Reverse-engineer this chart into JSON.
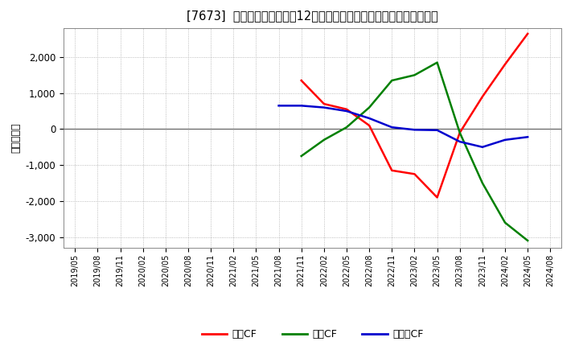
{
  "title": "[7673]  キャッシュフローの12か月移動合計の対前年同期増減額の推移",
  "ylabel": "（百万円）",
  "background_color": "#ffffff",
  "plot_bg_color": "#ffffff",
  "grid_color": "#aaaaaa",
  "ylim": [
    -3300,
    2800
  ],
  "yticks": [
    -3000,
    -2000,
    -1000,
    0,
    1000,
    2000
  ],
  "x_labels": [
    "2019/05",
    "2019/08",
    "2019/11",
    "2020/02",
    "2020/05",
    "2020/08",
    "2020/11",
    "2021/02",
    "2021/05",
    "2021/08",
    "2021/11",
    "2022/02",
    "2022/05",
    "2022/08",
    "2022/11",
    "2023/02",
    "2023/05",
    "2023/08",
    "2023/11",
    "2024/02",
    "2024/05",
    "2024/08"
  ],
  "operating_cf": {
    "x": [
      "2021/11",
      "2022/02",
      "2022/05",
      "2022/08",
      "2022/11",
      "2023/02",
      "2023/05",
      "2023/08",
      "2023/11",
      "2024/02",
      "2024/05"
    ],
    "y": [
      1350,
      700,
      550,
      100,
      -1150,
      -1250,
      -1900,
      -100,
      900,
      1800,
      2650
    ],
    "color": "#ff0000",
    "label": "営業CF"
  },
  "invest_cf": {
    "x": [
      "2021/11",
      "2022/02",
      "2022/05",
      "2022/08",
      "2022/11",
      "2023/02",
      "2023/05",
      "2023/08",
      "2023/11",
      "2024/02",
      "2024/05"
    ],
    "y": [
      -750,
      -300,
      50,
      600,
      1350,
      1500,
      1850,
      -100,
      -1500,
      -2600,
      -3100
    ],
    "color": "#008000",
    "label": "投資CF"
  },
  "free_cf": {
    "x": [
      "2021/08",
      "2021/11",
      "2022/02",
      "2022/05",
      "2022/08",
      "2022/11",
      "2023/02",
      "2023/05",
      "2023/08",
      "2023/11",
      "2024/02",
      "2024/05"
    ],
    "y": [
      650,
      650,
      600,
      500,
      300,
      50,
      -20,
      -30,
      -350,
      -500,
      -300,
      -220
    ],
    "color": "#0000cd",
    "label": "フリーCF"
  },
  "legend_labels": [
    "営業CF",
    "投資CF",
    "フリーCF"
  ],
  "legend_colors": [
    "#ff0000",
    "#008000",
    "#0000cd"
  ]
}
